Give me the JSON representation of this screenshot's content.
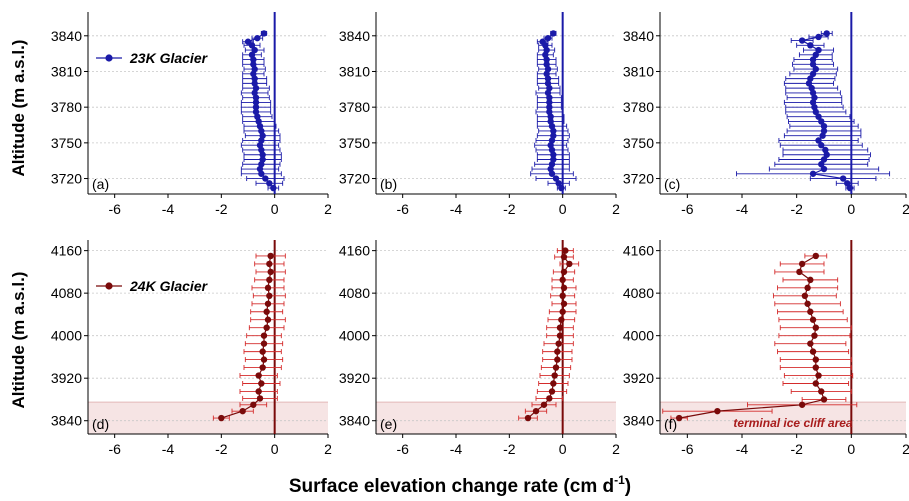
{
  "figure": {
    "xlabel_main": "Surface elevation change rate (cm d",
    "xlabel_sup": "-1",
    "xlabel_close": ")",
    "ylabel_top": "Altitude (m a.s.l.)",
    "ylabel_bottom": "Altitude (m a.s.l.)"
  },
  "colors": {
    "glacier_23k": "#1a1aa8",
    "glacier_24k": "#7a0a0a",
    "error_24k": "#d42b2b",
    "shade": "#f6e4e4",
    "grid": "#c8c8c8"
  },
  "chart_data": [
    {
      "type": "scatter",
      "panel": "(a)",
      "glacier": "23K",
      "legend": "23K Glacier",
      "xlim": [
        -7,
        2
      ],
      "xticks": [
        -6,
        -4,
        -2,
        0,
        2
      ],
      "ylim": [
        3707,
        3860
      ],
      "yticks": [
        3720,
        3750,
        3780,
        3810,
        3840
      ],
      "zero_line": true,
      "points": [
        {
          "y": 3842,
          "x": -0.4,
          "err": 0.1
        },
        {
          "y": 3838,
          "x": -0.65,
          "err": 0.2
        },
        {
          "y": 3835,
          "x": -1.0,
          "err": 0.2
        },
        {
          "y": 3832,
          "x": -0.85,
          "err": 0.3
        },
        {
          "y": 3828,
          "x": -0.75,
          "err": 0.35
        },
        {
          "y": 3824,
          "x": -0.85,
          "err": 0.35
        },
        {
          "y": 3820,
          "x": -0.8,
          "err": 0.4
        },
        {
          "y": 3816,
          "x": -0.8,
          "err": 0.4
        },
        {
          "y": 3812,
          "x": -0.75,
          "err": 0.4
        },
        {
          "y": 3808,
          "x": -0.8,
          "err": 0.4
        },
        {
          "y": 3804,
          "x": -0.75,
          "err": 0.45
        },
        {
          "y": 3800,
          "x": -0.75,
          "err": 0.45
        },
        {
          "y": 3796,
          "x": -0.7,
          "err": 0.5
        },
        {
          "y": 3792,
          "x": -0.75,
          "err": 0.5
        },
        {
          "y": 3788,
          "x": -0.7,
          "err": 0.5
        },
        {
          "y": 3784,
          "x": -0.7,
          "err": 0.55
        },
        {
          "y": 3780,
          "x": -0.7,
          "err": 0.55
        },
        {
          "y": 3776,
          "x": -0.7,
          "err": 0.55
        },
        {
          "y": 3772,
          "x": -0.65,
          "err": 0.55
        },
        {
          "y": 3768,
          "x": -0.6,
          "err": 0.6
        },
        {
          "y": 3764,
          "x": -0.55,
          "err": 0.6
        },
        {
          "y": 3760,
          "x": -0.5,
          "err": 0.65
        },
        {
          "y": 3756,
          "x": -0.45,
          "err": 0.65
        },
        {
          "y": 3752,
          "x": -0.5,
          "err": 0.7
        },
        {
          "y": 3748,
          "x": -0.55,
          "err": 0.7
        },
        {
          "y": 3744,
          "x": -0.5,
          "err": 0.7
        },
        {
          "y": 3740,
          "x": -0.45,
          "err": 0.7
        },
        {
          "y": 3736,
          "x": -0.45,
          "err": 0.7
        },
        {
          "y": 3732,
          "x": -0.5,
          "err": 0.7
        },
        {
          "y": 3728,
          "x": -0.55,
          "err": 0.7
        },
        {
          "y": 3724,
          "x": -0.5,
          "err": 0.75
        },
        {
          "y": 3720,
          "x": -0.35,
          "err": 0.7
        },
        {
          "y": 3716,
          "x": -0.2,
          "err": 0.5
        },
        {
          "y": 3712,
          "x": -0.05,
          "err": 0.2
        }
      ]
    },
    {
      "type": "scatter",
      "panel": "(b)",
      "glacier": "23K",
      "xlim": [
        -7,
        2
      ],
      "xticks": [
        -6,
        -4,
        -2,
        0,
        2
      ],
      "ylim": [
        3707,
        3860
      ],
      "yticks": [
        3720,
        3750,
        3780,
        3810,
        3840
      ],
      "zero_line": true,
      "points": [
        {
          "y": 3842,
          "x": -0.35,
          "err": 0.1
        },
        {
          "y": 3838,
          "x": -0.55,
          "err": 0.15
        },
        {
          "y": 3835,
          "x": -0.75,
          "err": 0.2
        },
        {
          "y": 3832,
          "x": -0.65,
          "err": 0.25
        },
        {
          "y": 3828,
          "x": -0.6,
          "err": 0.3
        },
        {
          "y": 3824,
          "x": -0.65,
          "err": 0.3
        },
        {
          "y": 3820,
          "x": -0.6,
          "err": 0.35
        },
        {
          "y": 3816,
          "x": -0.6,
          "err": 0.35
        },
        {
          "y": 3812,
          "x": -0.55,
          "err": 0.35
        },
        {
          "y": 3808,
          "x": -0.6,
          "err": 0.35
        },
        {
          "y": 3804,
          "x": -0.55,
          "err": 0.4
        },
        {
          "y": 3800,
          "x": -0.55,
          "err": 0.4
        },
        {
          "y": 3796,
          "x": -0.5,
          "err": 0.4
        },
        {
          "y": 3792,
          "x": -0.55,
          "err": 0.45
        },
        {
          "y": 3788,
          "x": -0.5,
          "err": 0.45
        },
        {
          "y": 3784,
          "x": -0.5,
          "err": 0.45
        },
        {
          "y": 3780,
          "x": -0.5,
          "err": 0.45
        },
        {
          "y": 3776,
          "x": -0.5,
          "err": 0.5
        },
        {
          "y": 3772,
          "x": -0.45,
          "err": 0.5
        },
        {
          "y": 3768,
          "x": -0.45,
          "err": 0.5
        },
        {
          "y": 3764,
          "x": -0.4,
          "err": 0.55
        },
        {
          "y": 3760,
          "x": -0.35,
          "err": 0.55
        },
        {
          "y": 3756,
          "x": -0.35,
          "err": 0.6
        },
        {
          "y": 3752,
          "x": -0.4,
          "err": 0.6
        },
        {
          "y": 3748,
          "x": -0.45,
          "err": 0.6
        },
        {
          "y": 3744,
          "x": -0.4,
          "err": 0.6
        },
        {
          "y": 3740,
          "x": -0.35,
          "err": 0.6
        },
        {
          "y": 3736,
          "x": -0.35,
          "err": 0.6
        },
        {
          "y": 3732,
          "x": -0.4,
          "err": 0.65
        },
        {
          "y": 3728,
          "x": -0.45,
          "err": 0.7
        },
        {
          "y": 3724,
          "x": -0.4,
          "err": 0.8
        },
        {
          "y": 3720,
          "x": -0.25,
          "err": 0.75
        },
        {
          "y": 3716,
          "x": -0.15,
          "err": 0.4
        },
        {
          "y": 3712,
          "x": -0.05,
          "err": 0.15
        }
      ]
    },
    {
      "type": "scatter",
      "panel": "(c)",
      "glacier": "23K",
      "xlim": [
        -7,
        2
      ],
      "xticks": [
        -6,
        -4,
        -2,
        0,
        2
      ],
      "ylim": [
        3707,
        3860
      ],
      "yticks": [
        3720,
        3750,
        3780,
        3810,
        3840
      ],
      "zero_line": true,
      "points": [
        {
          "y": 3842,
          "x": -0.9,
          "err": 0.2
        },
        {
          "y": 3839,
          "x": -1.2,
          "err": 0.35
        },
        {
          "y": 3836,
          "x": -1.8,
          "err": 0.4
        },
        {
          "y": 3832,
          "x": -1.5,
          "err": 0.5
        },
        {
          "y": 3828,
          "x": -1.2,
          "err": 0.55
        },
        {
          "y": 3824,
          "x": -1.3,
          "err": 0.6
        },
        {
          "y": 3820,
          "x": -1.4,
          "err": 0.7
        },
        {
          "y": 3816,
          "x": -1.4,
          "err": 0.75
        },
        {
          "y": 3812,
          "x": -1.3,
          "err": 0.8
        },
        {
          "y": 3808,
          "x": -1.4,
          "err": 0.85
        },
        {
          "y": 3804,
          "x": -1.5,
          "err": 0.9
        },
        {
          "y": 3800,
          "x": -1.55,
          "err": 0.9
        },
        {
          "y": 3796,
          "x": -1.45,
          "err": 0.95
        },
        {
          "y": 3792,
          "x": -1.4,
          "err": 1.0
        },
        {
          "y": 3788,
          "x": -1.35,
          "err": 1.0
        },
        {
          "y": 3784,
          "x": -1.4,
          "err": 1.05
        },
        {
          "y": 3780,
          "x": -1.35,
          "err": 1.05
        },
        {
          "y": 3776,
          "x": -1.3,
          "err": 1.1
        },
        {
          "y": 3772,
          "x": -1.2,
          "err": 1.15
        },
        {
          "y": 3768,
          "x": -1.1,
          "err": 1.2
        },
        {
          "y": 3764,
          "x": -1.0,
          "err": 1.25
        },
        {
          "y": 3760,
          "x": -1.0,
          "err": 1.35
        },
        {
          "y": 3756,
          "x": -1.05,
          "err": 1.4
        },
        {
          "y": 3752,
          "x": -1.2,
          "err": 1.45
        },
        {
          "y": 3748,
          "x": -1.1,
          "err": 1.5
        },
        {
          "y": 3744,
          "x": -0.95,
          "err": 1.55
        },
        {
          "y": 3740,
          "x": -0.9,
          "err": 1.6
        },
        {
          "y": 3736,
          "x": -1.0,
          "err": 1.65
        },
        {
          "y": 3732,
          "x": -1.1,
          "err": 1.7
        },
        {
          "y": 3728,
          "x": -1.0,
          "err": 2.0
        },
        {
          "y": 3724,
          "x": -1.4,
          "err": 2.8
        },
        {
          "y": 3720,
          "x": -0.3,
          "err": 1.2
        },
        {
          "y": 3716,
          "x": -0.15,
          "err": 0.4
        },
        {
          "y": 3712,
          "x": -0.05,
          "err": 0.15
        }
      ]
    },
    {
      "type": "scatter",
      "panel": "(d)",
      "glacier": "24K",
      "legend": "24K Glacier",
      "xlim": [
        -7,
        2
      ],
      "xticks": [
        -6,
        -4,
        -2,
        0,
        2
      ],
      "ylim": [
        3815,
        4180
      ],
      "yticks": [
        3840,
        3920,
        4000,
        4080,
        4160
      ],
      "zero_line": true,
      "shaded_band": [
        3815,
        3875
      ],
      "points": [
        {
          "y": 4150,
          "x": -0.15,
          "err": 0.55
        },
        {
          "y": 4135,
          "x": -0.2,
          "err": 0.55
        },
        {
          "y": 4120,
          "x": -0.15,
          "err": 0.55
        },
        {
          "y": 4105,
          "x": -0.2,
          "err": 0.55
        },
        {
          "y": 4090,
          "x": -0.25,
          "err": 0.6
        },
        {
          "y": 4075,
          "x": -0.2,
          "err": 0.6
        },
        {
          "y": 4060,
          "x": -0.25,
          "err": 0.6
        },
        {
          "y": 4045,
          "x": -0.3,
          "err": 0.6
        },
        {
          "y": 4030,
          "x": -0.25,
          "err": 0.65
        },
        {
          "y": 4015,
          "x": -0.3,
          "err": 0.65
        },
        {
          "y": 4000,
          "x": -0.4,
          "err": 0.65
        },
        {
          "y": 3985,
          "x": -0.4,
          "err": 0.7
        },
        {
          "y": 3970,
          "x": -0.45,
          "err": 0.7
        },
        {
          "y": 3955,
          "x": -0.4,
          "err": 0.7
        },
        {
          "y": 3940,
          "x": -0.45,
          "err": 0.7
        },
        {
          "y": 3925,
          "x": -0.6,
          "err": 0.7
        },
        {
          "y": 3910,
          "x": -0.5,
          "err": 0.7
        },
        {
          "y": 3895,
          "x": -0.6,
          "err": 0.7
        },
        {
          "y": 3882,
          "x": -0.55,
          "err": 0.65
        },
        {
          "y": 3870,
          "x": -0.8,
          "err": 0.5
        },
        {
          "y": 3858,
          "x": -1.2,
          "err": 0.4
        },
        {
          "y": 3845,
          "x": -2.0,
          "err": 0.3
        }
      ]
    },
    {
      "type": "scatter",
      "panel": "(e)",
      "glacier": "24K",
      "xlim": [
        -7,
        2
      ],
      "xticks": [
        -6,
        -4,
        -2,
        0,
        2
      ],
      "ylim": [
        3815,
        4180
      ],
      "yticks": [
        3840,
        3920,
        4000,
        4080,
        4160
      ],
      "zero_line": true,
      "shaded_band": [
        3815,
        3875
      ],
      "points": [
        {
          "y": 4160,
          "x": 0.1,
          "err": 0.3
        },
        {
          "y": 4148,
          "x": 0.05,
          "err": 0.35
        },
        {
          "y": 4135,
          "x": 0.25,
          "err": 0.35
        },
        {
          "y": 4120,
          "x": 0.05,
          "err": 0.4
        },
        {
          "y": 4105,
          "x": 0.0,
          "err": 0.4
        },
        {
          "y": 4090,
          "x": 0.05,
          "err": 0.45
        },
        {
          "y": 4075,
          "x": 0.0,
          "err": 0.45
        },
        {
          "y": 4060,
          "x": 0.05,
          "err": 0.45
        },
        {
          "y": 4045,
          "x": 0.0,
          "err": 0.5
        },
        {
          "y": 4030,
          "x": -0.05,
          "err": 0.5
        },
        {
          "y": 4015,
          "x": -0.1,
          "err": 0.5
        },
        {
          "y": 4000,
          "x": -0.1,
          "err": 0.5
        },
        {
          "y": 3985,
          "x": -0.15,
          "err": 0.55
        },
        {
          "y": 3970,
          "x": -0.2,
          "err": 0.55
        },
        {
          "y": 3955,
          "x": -0.2,
          "err": 0.55
        },
        {
          "y": 3940,
          "x": -0.25,
          "err": 0.55
        },
        {
          "y": 3925,
          "x": -0.3,
          "err": 0.55
        },
        {
          "y": 3910,
          "x": -0.35,
          "err": 0.55
        },
        {
          "y": 3895,
          "x": -0.4,
          "err": 0.55
        },
        {
          "y": 3882,
          "x": -0.5,
          "err": 0.5
        },
        {
          "y": 3870,
          "x": -0.7,
          "err": 0.45
        },
        {
          "y": 3858,
          "x": -1.0,
          "err": 0.4
        },
        {
          "y": 3845,
          "x": -1.3,
          "err": 0.35
        }
      ]
    },
    {
      "type": "scatter",
      "panel": "(f)",
      "glacier": "24K",
      "annotation": "terminal ice cliff area",
      "xlim": [
        -7,
        2
      ],
      "xticks": [
        -6,
        -4,
        -2,
        0,
        2
      ],
      "ylim": [
        3815,
        4180
      ],
      "yticks": [
        3840,
        3920,
        4000,
        4080,
        4160
      ],
      "zero_line": true,
      "shaded_band": [
        3815,
        3875
      ],
      "points": [
        {
          "y": 4150,
          "x": -1.3,
          "err": 0.4
        },
        {
          "y": 4135,
          "x": -1.8,
          "err": 0.8
        },
        {
          "y": 4120,
          "x": -1.9,
          "err": 0.9
        },
        {
          "y": 4105,
          "x": -1.5,
          "err": 1.0
        },
        {
          "y": 4090,
          "x": -1.6,
          "err": 1.1
        },
        {
          "y": 4075,
          "x": -1.7,
          "err": 1.15
        },
        {
          "y": 4060,
          "x": -1.6,
          "err": 1.2
        },
        {
          "y": 4045,
          "x": -1.5,
          "err": 1.2
        },
        {
          "y": 4030,
          "x": -1.4,
          "err": 1.25
        },
        {
          "y": 4015,
          "x": -1.3,
          "err": 1.3
        },
        {
          "y": 4000,
          "x": -1.35,
          "err": 1.3
        },
        {
          "y": 3985,
          "x": -1.5,
          "err": 1.3
        },
        {
          "y": 3970,
          "x": -1.4,
          "err": 1.3
        },
        {
          "y": 3955,
          "x": -1.3,
          "err": 1.3
        },
        {
          "y": 3940,
          "x": -1.3,
          "err": 1.3
        },
        {
          "y": 3925,
          "x": -1.2,
          "err": 1.25
        },
        {
          "y": 3910,
          "x": -1.3,
          "err": 1.2
        },
        {
          "y": 3895,
          "x": -1.1,
          "err": 1.1
        },
        {
          "y": 3880,
          "x": -1.0,
          "err": 0.8
        },
        {
          "y": 3870,
          "x": -1.8,
          "err": 2.0
        },
        {
          "y": 3858,
          "x": -4.9,
          "err": 2.0
        },
        {
          "y": 3845,
          "x": -6.3,
          "err": 0.3
        }
      ]
    }
  ]
}
